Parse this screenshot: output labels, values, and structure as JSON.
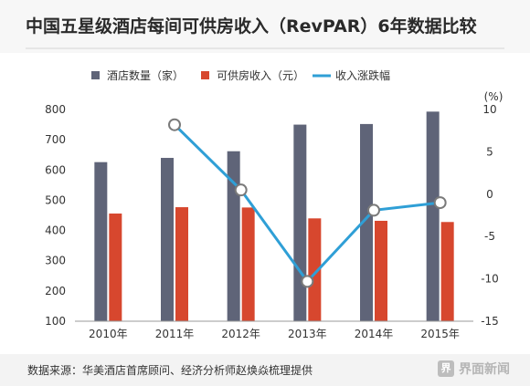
{
  "header": {
    "title": "中国五星级酒店每间可供房收入（RevPAR）6年数据比较"
  },
  "footer": {
    "source": "数据来源：华美酒店首席顾问、经济分析师赵焕焱梳理提供",
    "brand_text": "界面新闻",
    "brand_mark": "界"
  },
  "chart_data": {
    "type": "bar",
    "categories": [
      "2010年",
      "2011年",
      "2012年",
      "2013年",
      "2014年",
      "2015年"
    ],
    "series": [
      {
        "name": "酒店数量（家）",
        "type": "bar",
        "axis": "left",
        "color": "#5f6478",
        "values": [
          626,
          640,
          662,
          750,
          752,
          793
        ]
      },
      {
        "name": "可供房收入（元）",
        "type": "bar",
        "axis": "left",
        "color": "#d7472e",
        "values": [
          456,
          477,
          476,
          440,
          432,
          428
        ]
      },
      {
        "name": "收入涨跌幅",
        "type": "line",
        "axis": "right",
        "color": "#2f9fd6",
        "values": [
          null,
          8.2,
          0.5,
          -10.3,
          -1.9,
          -1.0
        ]
      }
    ],
    "left_axis": {
      "ylim": [
        100,
        800
      ],
      "ticks": [
        100,
        200,
        300,
        400,
        500,
        600,
        700,
        800
      ]
    },
    "right_axis": {
      "unit": "(%)",
      "ylim": [
        -15,
        10
      ],
      "ticks": [
        -15,
        -10,
        -5,
        0,
        5,
        10
      ]
    },
    "legend_position": "top",
    "grid": false
  }
}
